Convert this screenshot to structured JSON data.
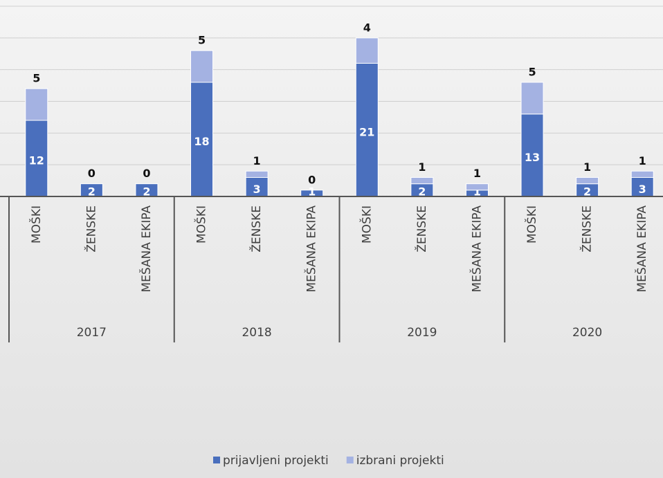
{
  "chart_data": {
    "type": "bar",
    "stacked": true,
    "groups": [
      "2017",
      "2018",
      "2019",
      "2020"
    ],
    "categories": [
      "MOŠKI",
      "ŽENSKE",
      "MEŠANA EKIPA",
      "MOŠKI",
      "ŽENSKE",
      "MEŠANA EKIPA",
      "MOŠKI",
      "ŽENSKE",
      "MEŠANA EKIPA",
      "MOŠKI",
      "ŽENSKE",
      "MEŠANA EKIPA"
    ],
    "series": [
      {
        "name": "prijavljeni projekti",
        "color": "#4a6fbd",
        "values": [
          12,
          2,
          2,
          18,
          3,
          1,
          21,
          2,
          1,
          13,
          2,
          3
        ]
      },
      {
        "name": "izbrani projekti",
        "color": "#a4b2e2",
        "values": [
          5,
          0,
          0,
          5,
          1,
          0,
          4,
          1,
          1,
          5,
          1,
          1
        ]
      }
    ],
    "ylim": [
      0,
      30
    ],
    "yticks": [
      0,
      5,
      10,
      15,
      20,
      25,
      30
    ],
    "grid": true,
    "legend": "bottom"
  }
}
